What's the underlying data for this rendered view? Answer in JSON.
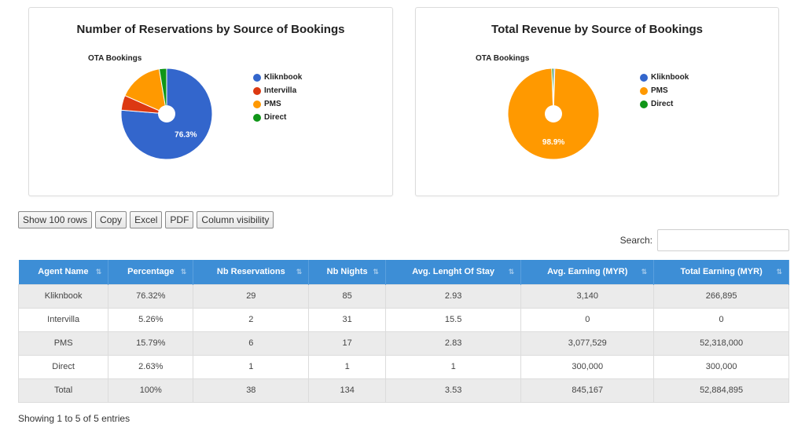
{
  "charts": {
    "left": {
      "title": "Number of Reservations by Source of Bookings",
      "pie_label": "OTA Bookings",
      "big_slice_label": "76.3%"
    },
    "right": {
      "title": "Total Revenue by Source of Bookings",
      "pie_label": "OTA Bookings",
      "big_slice_label": "98.9%"
    }
  },
  "chart_data": [
    {
      "type": "pie",
      "title": "Number of Reservations by Source of Bookings",
      "subtitle": "OTA Bookings",
      "categories": [
        "Kliknbook",
        "Intervilla",
        "PMS",
        "Direct"
      ],
      "values": [
        76.32,
        5.26,
        15.79,
        2.63
      ],
      "colors": [
        "#3366cc",
        "#dc3912",
        "#ff9900",
        "#109618"
      ],
      "legend": "right"
    },
    {
      "type": "pie",
      "title": "Total Revenue by Source of Bookings",
      "subtitle": "OTA Bookings",
      "categories": [
        "Kliknbook",
        "PMS",
        "Direct"
      ],
      "values": [
        0.5,
        98.9,
        0.6
      ],
      "colors": [
        "#3366cc",
        "#ff9900",
        "#109618"
      ],
      "legend": "right"
    }
  ],
  "toolbar": {
    "show_rows": "Show 100 rows",
    "copy": "Copy",
    "excel": "Excel",
    "pdf": "PDF",
    "column_visibility": "Column visibility"
  },
  "search": {
    "label": "Search:",
    "value": "",
    "placeholder": ""
  },
  "table": {
    "headers": [
      "Agent Name",
      "Percentage",
      "Nb Reservations",
      "Nb Nights",
      "Avg. Lenght Of Stay",
      "Avg. Earning (MYR)",
      "Total Earning (MYR)"
    ],
    "rows": [
      [
        "Kliknbook",
        "76.32%",
        "29",
        "85",
        "2.93",
        "3,140",
        "266,895"
      ],
      [
        "Intervilla",
        "5.26%",
        "2",
        "31",
        "15.5",
        "0",
        "0"
      ],
      [
        "PMS",
        "15.79%",
        "6",
        "17",
        "2.83",
        "3,077,529",
        "52,318,000"
      ],
      [
        "Direct",
        "2.63%",
        "1",
        "1",
        "1",
        "300,000",
        "300,000"
      ],
      [
        "Total",
        "100%",
        "38",
        "134",
        "3.53",
        "845,167",
        "52,884,895"
      ]
    ]
  },
  "info": "Showing 1 to 5 of 5 entries"
}
